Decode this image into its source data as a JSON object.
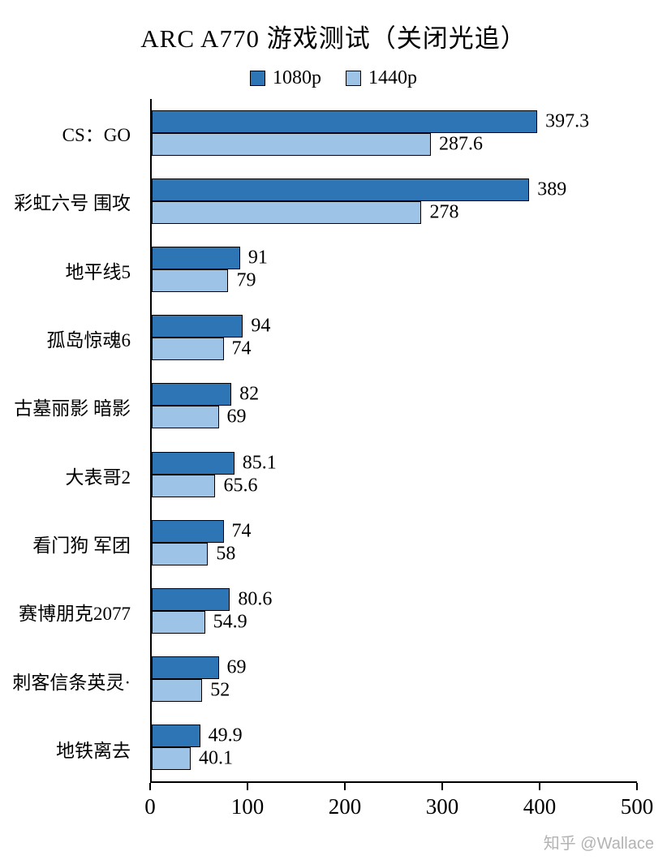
{
  "title": "ARC A770 游戏测试（关闭光追）",
  "watermark": "知乎 @Wallace",
  "colors": {
    "series_1080p": "#2E75B6",
    "series_1440p": "#9DC3E6",
    "bar_border": "#000000"
  },
  "chart_data": {
    "type": "bar",
    "orientation": "horizontal",
    "title": "ARC A770 游戏测试（关闭光追）",
    "categories": [
      "CS：GO",
      "彩虹六号 围攻",
      "地平线5",
      "孤岛惊魂6",
      "古墓丽影 暗影",
      "大表哥2",
      "看门狗 军团",
      "赛博朋克2077",
      "刺客信条英灵·",
      "地铁离去"
    ],
    "series": [
      {
        "name": "1080p",
        "color": "#2E75B6",
        "values": [
          397.3,
          389,
          91,
          94,
          82,
          85.1,
          74,
          80.6,
          69,
          49.9
        ]
      },
      {
        "name": "1440p",
        "color": "#9DC3E6",
        "values": [
          287.6,
          278,
          79,
          74,
          69,
          65.6,
          58,
          54.9,
          52,
          40.1
        ]
      }
    ],
    "xlabel": "",
    "ylabel": "",
    "xlim": [
      0,
      500
    ],
    "xticks": [
      0,
      100,
      200,
      300,
      400,
      500
    ],
    "grid": false,
    "legend_position": "top",
    "value_labels": true
  }
}
